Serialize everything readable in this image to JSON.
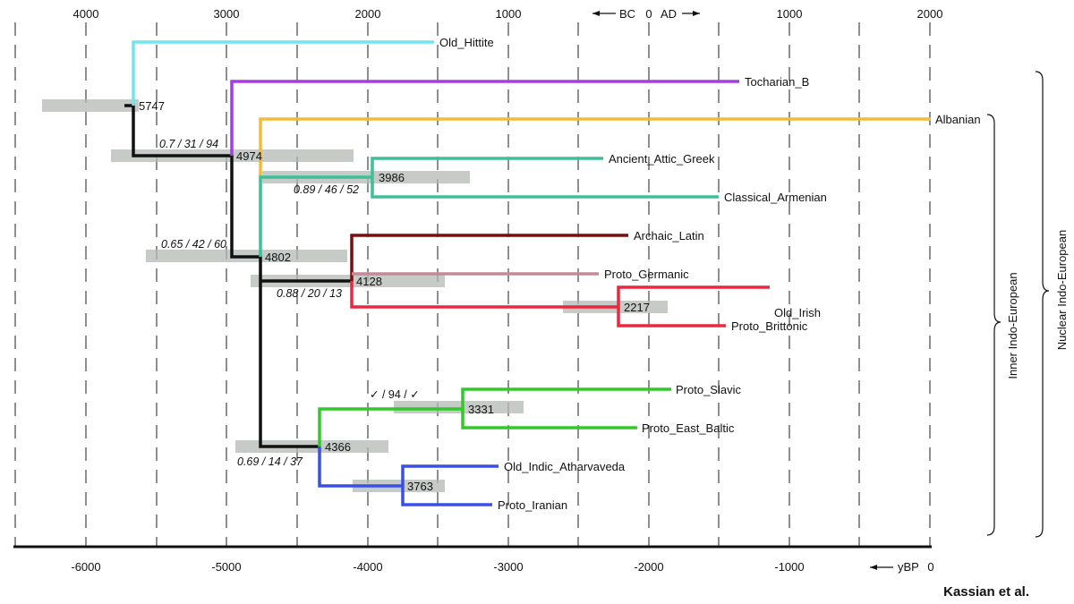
{
  "top_axis": {
    "ticks": [
      "4000",
      "3000",
      "2000",
      "1000",
      "1000",
      "2000"
    ],
    "era_left": "BC",
    "era_zero": "0",
    "era_right": "AD"
  },
  "bottom_axis": {
    "ticks": [
      "-6000",
      "-5000",
      "-4000",
      "-3000",
      "-2000",
      "-1000",
      "0"
    ],
    "unit_label": "yBP"
  },
  "tree": {
    "leaves": [
      {
        "label": "Old_Hittite",
        "color": "#6fe6ee"
      },
      {
        "label": "Tocharian_B",
        "color": "#a53ee0"
      },
      {
        "label": "Albanian",
        "color": "#f2bb3a"
      },
      {
        "label": "Ancient_Attic_Greek",
        "color": "#3fbf98"
      },
      {
        "label": "Classical_Armenian",
        "color": "#3fbf98"
      },
      {
        "label": "Archaic_Latin",
        "color": "#7a0e0e"
      },
      {
        "label": "Proto_Germanic",
        "color": "#c48a98"
      },
      {
        "label": "Old_Irish",
        "color": "#e8293f"
      },
      {
        "label": "Proto_Brittonic",
        "color": "#e8293f"
      },
      {
        "label": "Proto_Slavic",
        "color": "#32c82a"
      },
      {
        "label": "Proto_East_Baltic",
        "color": "#32c82a"
      },
      {
        "label": "Old_Indic_Atharvaveda",
        "color": "#3a4fe6"
      },
      {
        "label": "Proto_Iranian",
        "color": "#3a4fe6"
      }
    ],
    "nodes": [
      {
        "label": "5747",
        "ybp": -5747
      },
      {
        "label": "4974",
        "ybp": -4974
      },
      {
        "label": "3986",
        "ybp": -3986
      },
      {
        "label": "4802",
        "ybp": -4802
      },
      {
        "label": "4128",
        "ybp": -4128
      },
      {
        "label": "2217",
        "ybp": -2217
      },
      {
        "label": "3331",
        "ybp": -3331
      },
      {
        "label": "4366",
        "ybp": -4366
      },
      {
        "label": "3763",
        "ybp": -3763
      }
    ],
    "supports": [
      "0.7 / 31 / 94",
      "0.89 / 46 / 52",
      "0.65 / 42 / 60",
      "0.88 / 20 / 13",
      "✓ / 94 / ✓",
      "0.69 / 14 / 37"
    ]
  },
  "braces": {
    "inner": "Inner Indo-European",
    "nuclear": "Nuclear Indo-European"
  },
  "credit": "Kassian et al."
}
